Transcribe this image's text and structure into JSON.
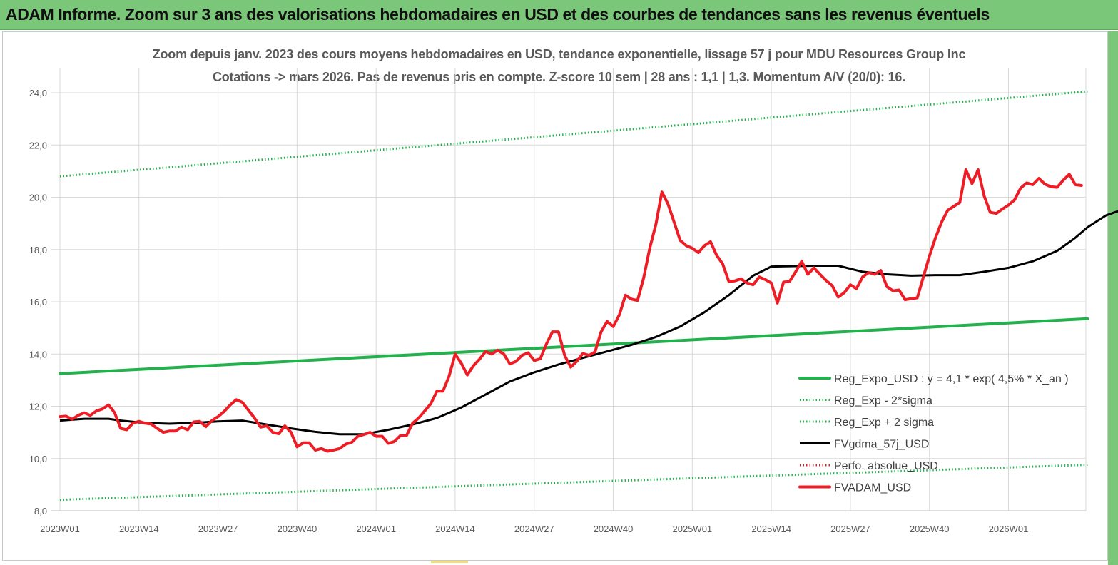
{
  "header": {
    "title": "ADAM Informe. Zoom sur 3 ans des valorisations hebdomadaires en USD et des courbes de tendances sans les revenus éventuels"
  },
  "chart_data": {
    "type": "line",
    "title": "Zoom depuis janv. 2023 des cours moyens hebdomadaires en USD, tendance exponentielle, lissage 57 j pour MDU Resources Group Inc",
    "subtitle": "Cotations -> mars 2026. Pas de revenus pris en compte. Z-score 10 sem | 28 ans : 1,1 | 1,3. Momentum A/V (20/0): 16.",
    "xlabel": "",
    "ylabel": "",
    "ylim": [
      8,
      24
    ],
    "yticks": [
      "24,0",
      "22,0",
      "20,0",
      "18,0",
      "16,0",
      "14,0",
      "12,0",
      "10,0",
      "8,0"
    ],
    "xticks": [
      "2023W01",
      "2023W14",
      "2023W27",
      "2023W40",
      "2024W01",
      "2024W14",
      "2024W27",
      "2024W40",
      "2025W01",
      "2025W14",
      "2025W27",
      "2025W40",
      "2026W01"
    ],
    "xlim_weeks": [
      0,
      169
    ],
    "grid": "both",
    "legend_position": "right",
    "series": [
      {
        "name": "Reg_Expo_USD : y = 4,1 * exp( 4,5% *  X_an )",
        "color": "#22b14c",
        "style": "solid-thick",
        "points": [
          [
            0,
            13.25
          ],
          [
            169,
            15.35
          ]
        ]
      },
      {
        "name": "Reg_Exp - 2*sigma",
        "color": "#22b14c",
        "style": "dotted",
        "points": [
          [
            0,
            8.42
          ],
          [
            169,
            9.76
          ]
        ]
      },
      {
        "name": "Reg_Exp + 2 sigma",
        "color": "#22b14c",
        "style": "dotted",
        "points": [
          [
            0,
            20.8
          ],
          [
            169,
            24.05
          ]
        ]
      },
      {
        "name": "FVgdma_57j_USD",
        "color": "#000000",
        "style": "solid",
        "points": [
          [
            0,
            11.45
          ],
          [
            4,
            11.52
          ],
          [
            8,
            11.52
          ],
          [
            10,
            11.45
          ],
          [
            14,
            11.36
          ],
          [
            18,
            11.33
          ],
          [
            22,
            11.36
          ],
          [
            26,
            11.42
          ],
          [
            30,
            11.45
          ],
          [
            34,
            11.3
          ],
          [
            38,
            11.15
          ],
          [
            42,
            11.02
          ],
          [
            46,
            10.93
          ],
          [
            50,
            10.93
          ],
          [
            54,
            11.1
          ],
          [
            58,
            11.3
          ],
          [
            62,
            11.55
          ],
          [
            66,
            11.95
          ],
          [
            70,
            12.45
          ],
          [
            74,
            12.95
          ],
          [
            78,
            13.3
          ],
          [
            82,
            13.6
          ],
          [
            86,
            13.85
          ],
          [
            90,
            14.1
          ],
          [
            94,
            14.35
          ],
          [
            98,
            14.65
          ],
          [
            102,
            15.05
          ],
          [
            106,
            15.6
          ],
          [
            110,
            16.25
          ],
          [
            114,
            17.0
          ],
          [
            117,
            17.35
          ],
          [
            124,
            17.38
          ],
          [
            128,
            17.38
          ],
          [
            132,
            17.15
          ],
          [
            136,
            17.05
          ],
          [
            140,
            17.0
          ],
          [
            144,
            17.02
          ],
          [
            148,
            17.02
          ],
          [
            152,
            17.15
          ],
          [
            156,
            17.3
          ],
          [
            160,
            17.55
          ],
          [
            164,
            17.95
          ],
          [
            167,
            18.45
          ],
          [
            169,
            18.85
          ],
          [
            172,
            19.3
          ],
          [
            175,
            19.55
          ],
          [
            178,
            19.65
          ],
          [
            182,
            19.85
          ],
          [
            186,
            20.05
          ],
          [
            190,
            20.2
          ],
          [
            194,
            20.3
          ],
          [
            196,
            20.32
          ]
        ]
      },
      {
        "name": "Perfo. absolue_USD",
        "color": "#d62728",
        "style": "dotted",
        "points": []
      },
      {
        "name": "FVADAM_USD",
        "color": "#ee1c24",
        "style": "solid-thick",
        "points": [
          [
            0,
            11.6
          ],
          [
            1,
            11.62
          ],
          [
            2,
            11.5
          ],
          [
            3,
            11.65
          ],
          [
            4,
            11.75
          ],
          [
            5,
            11.65
          ],
          [
            6,
            11.82
          ],
          [
            7,
            11.9
          ],
          [
            8,
            12.05
          ],
          [
            9,
            11.75
          ],
          [
            10,
            11.15
          ],
          [
            11,
            11.1
          ],
          [
            12,
            11.35
          ],
          [
            13,
            11.42
          ],
          [
            14,
            11.35
          ],
          [
            15,
            11.32
          ],
          [
            16,
            11.15
          ],
          [
            17,
            11.0
          ],
          [
            18,
            11.05
          ],
          [
            19,
            11.05
          ],
          [
            20,
            11.2
          ],
          [
            21,
            11.1
          ],
          [
            22,
            11.4
          ],
          [
            23,
            11.42
          ],
          [
            24,
            11.22
          ],
          [
            25,
            11.45
          ],
          [
            26,
            11.6
          ],
          [
            27,
            11.8
          ],
          [
            28,
            12.05
          ],
          [
            29,
            12.25
          ],
          [
            30,
            12.15
          ],
          [
            31,
            11.85
          ],
          [
            32,
            11.55
          ],
          [
            33,
            11.2
          ],
          [
            34,
            11.25
          ],
          [
            35,
            11.0
          ],
          [
            36,
            10.95
          ],
          [
            37,
            11.25
          ],
          [
            38,
            11.0
          ],
          [
            39,
            10.45
          ],
          [
            40,
            10.6
          ],
          [
            41,
            10.6
          ],
          [
            42,
            10.32
          ],
          [
            43,
            10.38
          ],
          [
            44,
            10.28
          ],
          [
            45,
            10.32
          ],
          [
            46,
            10.38
          ],
          [
            47,
            10.55
          ],
          [
            48,
            10.62
          ],
          [
            49,
            10.85
          ],
          [
            50,
            10.92
          ],
          [
            51,
            11.0
          ],
          [
            52,
            10.85
          ],
          [
            53,
            10.85
          ],
          [
            54,
            10.58
          ],
          [
            55,
            10.65
          ],
          [
            56,
            10.88
          ],
          [
            57,
            10.88
          ],
          [
            58,
            11.35
          ],
          [
            59,
            11.55
          ],
          [
            60,
            11.82
          ],
          [
            61,
            12.1
          ],
          [
            62,
            12.58
          ],
          [
            63,
            12.58
          ],
          [
            64,
            13.15
          ],
          [
            65,
            14.0
          ],
          [
            66,
            13.65
          ],
          [
            67,
            13.2
          ],
          [
            68,
            13.55
          ],
          [
            69,
            13.8
          ],
          [
            70,
            14.1
          ],
          [
            71,
            14.0
          ],
          [
            72,
            14.15
          ],
          [
            73,
            14.0
          ],
          [
            74,
            13.62
          ],
          [
            75,
            13.72
          ],
          [
            76,
            13.95
          ],
          [
            77,
            14.05
          ],
          [
            78,
            13.75
          ],
          [
            79,
            13.82
          ],
          [
            80,
            14.38
          ],
          [
            81,
            14.85
          ],
          [
            82,
            14.85
          ],
          [
            83,
            13.95
          ],
          [
            84,
            13.5
          ],
          [
            85,
            13.72
          ],
          [
            86,
            14.02
          ],
          [
            87,
            13.95
          ],
          [
            88,
            14.08
          ],
          [
            89,
            14.85
          ],
          [
            90,
            15.25
          ],
          [
            91,
            15.05
          ],
          [
            92,
            15.5
          ],
          [
            93,
            16.25
          ],
          [
            94,
            16.1
          ],
          [
            95,
            16.05
          ],
          [
            96,
            16.92
          ],
          [
            97,
            18.05
          ],
          [
            98,
            18.95
          ],
          [
            99,
            20.2
          ],
          [
            100,
            19.75
          ],
          [
            101,
            19.05
          ],
          [
            102,
            18.35
          ],
          [
            103,
            18.15
          ],
          [
            104,
            18.05
          ],
          [
            105,
            17.88
          ],
          [
            106,
            18.15
          ],
          [
            107,
            18.3
          ],
          [
            108,
            17.78
          ],
          [
            109,
            17.45
          ],
          [
            110,
            16.78
          ],
          [
            111,
            16.8
          ],
          [
            112,
            16.88
          ],
          [
            113,
            16.72
          ],
          [
            114,
            16.65
          ],
          [
            115,
            16.95
          ],
          [
            116,
            16.85
          ],
          [
            117,
            16.72
          ],
          [
            118,
            15.95
          ],
          [
            119,
            16.75
          ],
          [
            120,
            16.78
          ],
          [
            121,
            17.15
          ],
          [
            122,
            17.55
          ],
          [
            123,
            17.05
          ],
          [
            124,
            17.3
          ],
          [
            125,
            17.05
          ],
          [
            126,
            16.82
          ],
          [
            127,
            16.62
          ],
          [
            128,
            16.18
          ],
          [
            129,
            16.35
          ],
          [
            130,
            16.65
          ],
          [
            131,
            16.5
          ],
          [
            132,
            16.95
          ],
          [
            133,
            17.12
          ],
          [
            134,
            17.05
          ],
          [
            135,
            17.2
          ],
          [
            136,
            16.58
          ],
          [
            137,
            16.42
          ],
          [
            138,
            16.45
          ],
          [
            139,
            16.08
          ],
          [
            140,
            16.12
          ],
          [
            141,
            16.15
          ],
          [
            142,
            16.95
          ],
          [
            143,
            17.75
          ],
          [
            144,
            18.45
          ],
          [
            145,
            19.05
          ],
          [
            146,
            19.5
          ],
          [
            147,
            19.65
          ],
          [
            148,
            19.8
          ],
          [
            149,
            21.05
          ],
          [
            150,
            20.52
          ],
          [
            151,
            21.05
          ],
          [
            152,
            20.05
          ],
          [
            153,
            19.42
          ],
          [
            154,
            19.38
          ],
          [
            155,
            19.55
          ],
          [
            156,
            19.7
          ],
          [
            157,
            19.9
          ],
          [
            158,
            20.35
          ],
          [
            159,
            20.55
          ],
          [
            160,
            20.48
          ],
          [
            161,
            20.72
          ],
          [
            162,
            20.5
          ],
          [
            163,
            20.4
          ],
          [
            164,
            20.38
          ],
          [
            165,
            20.65
          ],
          [
            166,
            20.88
          ],
          [
            167,
            20.48
          ],
          [
            168,
            20.45
          ]
        ]
      }
    ]
  }
}
